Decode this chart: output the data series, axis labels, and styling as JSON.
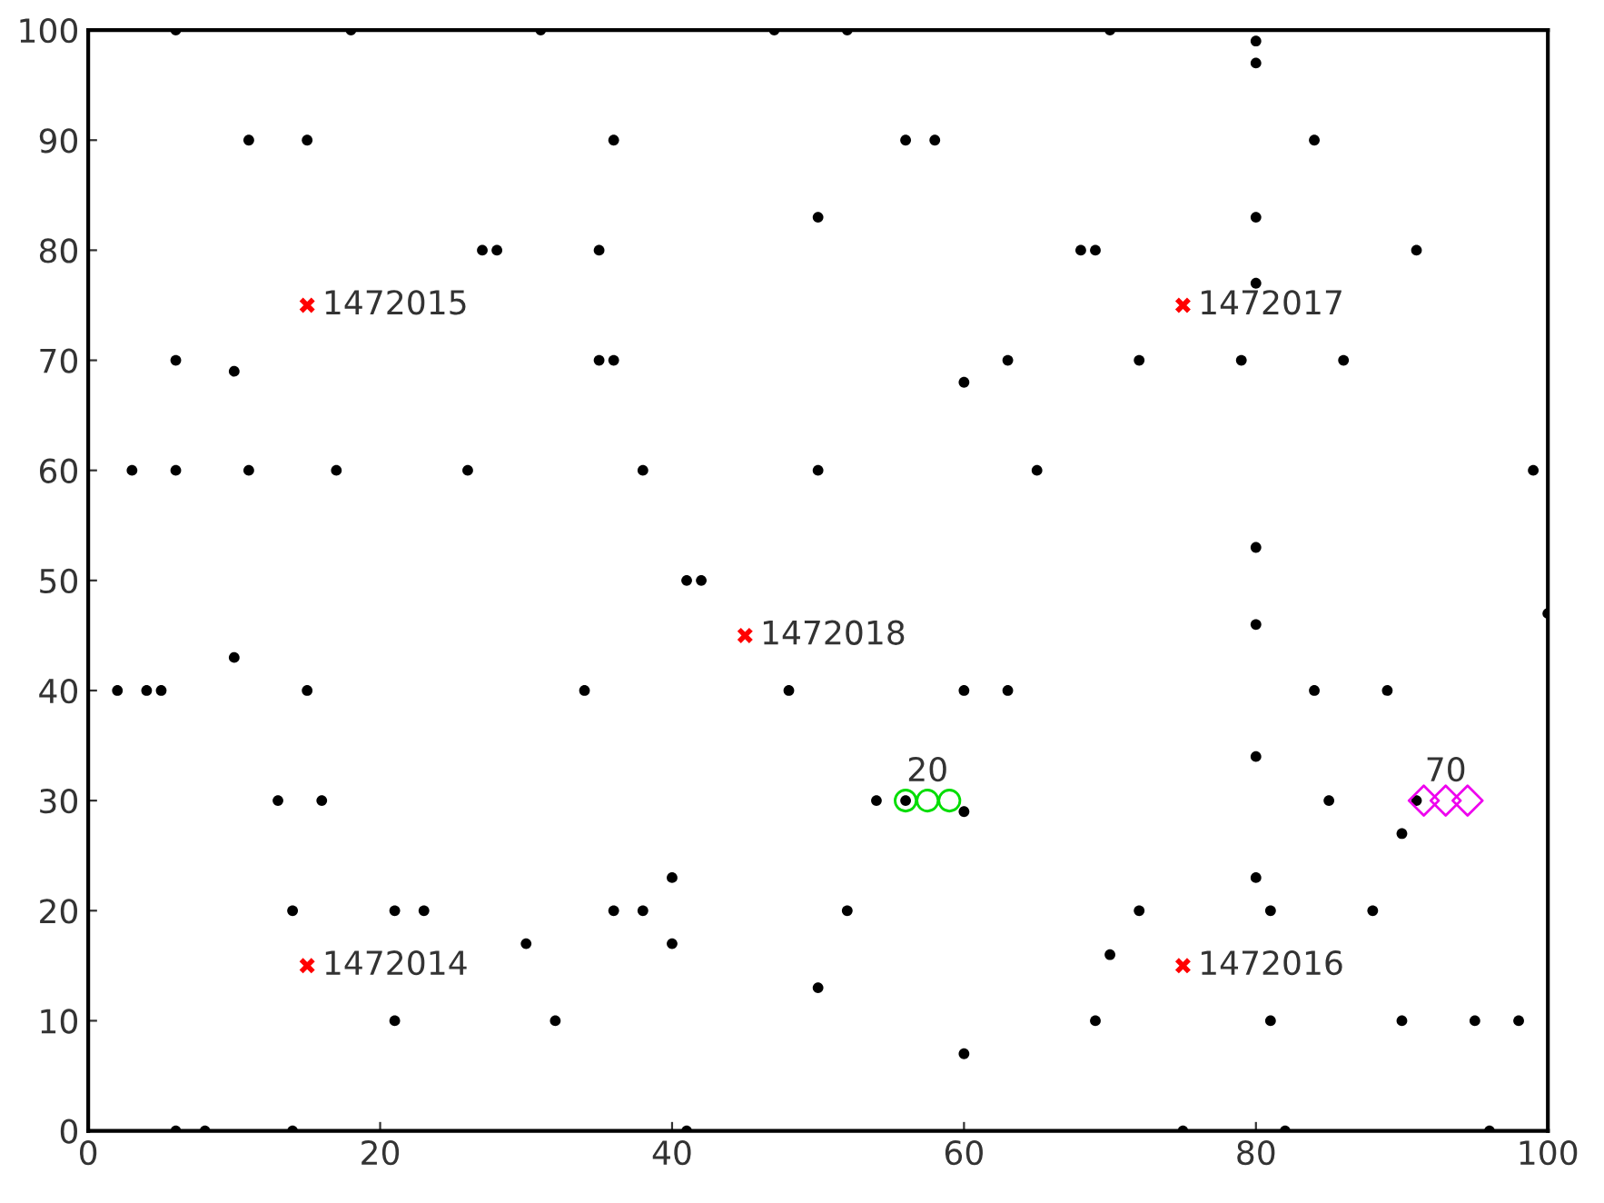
{
  "chart_data": {
    "type": "scatter",
    "xlim": [
      0,
      100
    ],
    "ylim": [
      0,
      100
    ],
    "xticks": [
      0,
      20,
      40,
      60,
      80,
      100
    ],
    "yticks": [
      0,
      10,
      20,
      30,
      40,
      50,
      60,
      70,
      80,
      90,
      100
    ],
    "grid": false,
    "legend": false,
    "series": [
      {
        "color": "#000000",
        "marker": "circle",
        "x": [
          6,
          18,
          31,
          11,
          15,
          27,
          28,
          6,
          10,
          3,
          6,
          11,
          17,
          26,
          47,
          52,
          36,
          56,
          58,
          50,
          35,
          35,
          36,
          60,
          63,
          38,
          50,
          65,
          41,
          42,
          70,
          80,
          80,
          84,
          80,
          68,
          69,
          91,
          80,
          72,
          79,
          86,
          99,
          80,
          10,
          2,
          4,
          5,
          15,
          13,
          16,
          14,
          21,
          23,
          30,
          21,
          32,
          6,
          8,
          14,
          34,
          48,
          60,
          63,
          54,
          56,
          60,
          40,
          36,
          38,
          52,
          40,
          50,
          60,
          41,
          100,
          80,
          84,
          89,
          80,
          91,
          90,
          85,
          80,
          72,
          81,
          88,
          70,
          69,
          81,
          90,
          95,
          98,
          75,
          82,
          96
        ],
        "values": [
          100,
          100,
          100,
          90,
          90,
          80,
          80,
          70,
          69,
          60,
          60,
          60,
          60,
          60,
          100,
          100,
          90,
          90,
          90,
          83,
          80,
          70,
          70,
          68,
          70,
          60,
          60,
          60,
          50,
          50,
          100,
          99,
          97,
          90,
          83,
          80,
          80,
          80,
          77,
          70,
          70,
          70,
          60,
          53,
          43,
          40,
          40,
          40,
          40,
          30,
          30,
          20,
          20,
          20,
          17,
          10,
          10,
          0,
          0,
          0,
          40,
          40,
          40,
          40,
          30,
          30,
          29,
          23,
          20,
          20,
          20,
          17,
          13,
          7,
          0,
          47,
          46,
          40,
          40,
          34,
          30,
          27,
          30,
          23,
          20,
          20,
          20,
          16,
          10,
          10,
          10,
          10,
          10,
          0,
          0,
          0
        ]
      },
      {
        "color": "#ff0000",
        "marker": "cross",
        "x": [
          15,
          75,
          45,
          15,
          75
        ],
        "values": [
          75,
          75,
          45,
          15,
          15
        ]
      },
      {
        "color": "#00dd00",
        "marker": "circle",
        "x": [
          56,
          57.5,
          59
        ],
        "values": [
          30,
          30,
          30
        ]
      },
      {
        "color": "#ee00ee",
        "marker": "diamond",
        "x": [
          91.5,
          93,
          94.5
        ],
        "values": [
          30,
          30,
          30
        ]
      }
    ],
    "annotations": [
      {
        "text": "1472015",
        "x": 15,
        "y": 75
      },
      {
        "text": "1472017",
        "x": 75,
        "y": 75
      },
      {
        "text": "1472018",
        "x": 45,
        "y": 45
      },
      {
        "text": "1472014",
        "x": 15,
        "y": 15
      },
      {
        "text": "1472016",
        "x": 75,
        "y": 15
      },
      {
        "text": "20",
        "x": 57.5,
        "y": 30
      },
      {
        "text": "70",
        "x": 93,
        "y": 30
      }
    ]
  }
}
